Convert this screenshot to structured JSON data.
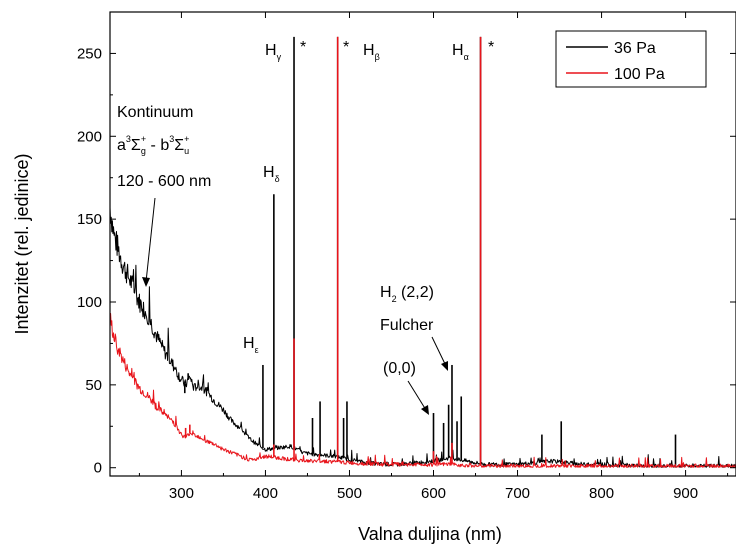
{
  "chart_data": {
    "type": "line",
    "xlabel": "Valna duljina (nm)",
    "ylabel": "Intenzitet (rel. jedinice)",
    "xlim": [
      215,
      960
    ],
    "ylim": [
      -5,
      275
    ],
    "x_ticks": [
      300,
      400,
      500,
      600,
      700,
      800,
      900
    ],
    "y_ticks": [
      0,
      50,
      100,
      150,
      200,
      250
    ],
    "legend": {
      "placement": "top-right"
    },
    "series": [
      {
        "name": "36 Pa",
        "color": "#000000",
        "points": [
          [
            215,
            157
          ],
          [
            220,
            140
          ],
          [
            230,
            123
          ],
          [
            240,
            112
          ],
          [
            250,
            100
          ],
          [
            260,
            92
          ],
          [
            270,
            80
          ],
          [
            280,
            70
          ],
          [
            290,
            62
          ],
          [
            300,
            53
          ],
          [
            305,
            50
          ],
          [
            310,
            55
          ],
          [
            315,
            48
          ],
          [
            320,
            50
          ],
          [
            330,
            46
          ],
          [
            340,
            40
          ],
          [
            350,
            35
          ],
          [
            360,
            28
          ],
          [
            370,
            24
          ],
          [
            380,
            18
          ],
          [
            390,
            14
          ],
          [
            400,
            11
          ],
          [
            415,
            12
          ],
          [
            430,
            13
          ],
          [
            445,
            9
          ],
          [
            460,
            8
          ],
          [
            480,
            7
          ],
          [
            500,
            5
          ],
          [
            520,
            3
          ],
          [
            540,
            2
          ],
          [
            560,
            2
          ],
          [
            580,
            3
          ],
          [
            600,
            4
          ],
          [
            620,
            6
          ],
          [
            640,
            4
          ],
          [
            660,
            2
          ],
          [
            700,
            2
          ],
          [
            720,
            3
          ],
          [
            740,
            4
          ],
          [
            760,
            3
          ],
          [
            780,
            2
          ],
          [
            800,
            2
          ],
          [
            850,
            1
          ],
          [
            900,
            1
          ],
          [
            960,
            1
          ]
        ],
        "peaks": [
          [
            304,
            45
          ],
          [
            308,
            57
          ],
          [
            312,
            52
          ],
          [
            397,
            62
          ],
          [
            410,
            165
          ],
          [
            434,
            260
          ],
          [
            456,
            30
          ],
          [
            465,
            40
          ],
          [
            486,
            260
          ],
          [
            493,
            30
          ],
          [
            497,
            40
          ],
          [
            600,
            33
          ],
          [
            612,
            27
          ],
          [
            618,
            38
          ],
          [
            622,
            62
          ],
          [
            628,
            28
          ],
          [
            633,
            43
          ],
          [
            656,
            260
          ],
          [
            729,
            20
          ],
          [
            752,
            28
          ],
          [
            888,
            20
          ]
        ]
      },
      {
        "name": "100 Pa",
        "color": "#e8141b",
        "points": [
          [
            215,
            90
          ],
          [
            220,
            78
          ],
          [
            230,
            65
          ],
          [
            240,
            55
          ],
          [
            250,
            48
          ],
          [
            260,
            43
          ],
          [
            270,
            37
          ],
          [
            280,
            32
          ],
          [
            290,
            28
          ],
          [
            300,
            20
          ],
          [
            305,
            18
          ],
          [
            310,
            21
          ],
          [
            320,
            19
          ],
          [
            330,
            16
          ],
          [
            340,
            14
          ],
          [
            350,
            11
          ],
          [
            360,
            9
          ],
          [
            370,
            7
          ],
          [
            380,
            5
          ],
          [
            390,
            5
          ],
          [
            400,
            7
          ],
          [
            415,
            6
          ],
          [
            430,
            5
          ],
          [
            450,
            4
          ],
          [
            470,
            4
          ],
          [
            500,
            3
          ],
          [
            540,
            2
          ],
          [
            580,
            2
          ],
          [
            620,
            2
          ],
          [
            660,
            1
          ],
          [
            700,
            1
          ],
          [
            800,
            1
          ],
          [
            900,
            1
          ],
          [
            960,
            1
          ]
        ],
        "peaks": [
          [
            305,
            24
          ],
          [
            310,
            26
          ],
          [
            410,
            14
          ],
          [
            434,
            78
          ],
          [
            486,
            260
          ],
          [
            600,
            10
          ],
          [
            622,
            15
          ],
          [
            656,
            260
          ]
        ]
      }
    ],
    "annotations": [
      {
        "text": "Kontinuum"
      },
      {
        "text": "a",
        "sup1": "3",
        "sym1": "Σ",
        "sub1": "g",
        "sup2": "+",
        "dash": " - b",
        "sup3": "3",
        "sym2": "Σ",
        "sub2": "u",
        "sup4": "+"
      },
      {
        "text": "120 - 600 nm"
      },
      {
        "text": "H",
        "sub": "ε"
      },
      {
        "text": "H",
        "sub": "δ"
      },
      {
        "text": "H",
        "sub": "γ"
      },
      {
        "text": "H",
        "sub": "β"
      },
      {
        "text": "H",
        "sub": "α"
      },
      {
        "text": "*"
      },
      {
        "text": "*"
      },
      {
        "text": "*"
      },
      {
        "text": "H",
        "sub": "2",
        "after": " (2,2)"
      },
      {
        "text": "Fulcher"
      },
      {
        "text": "(0,0)"
      }
    ]
  }
}
